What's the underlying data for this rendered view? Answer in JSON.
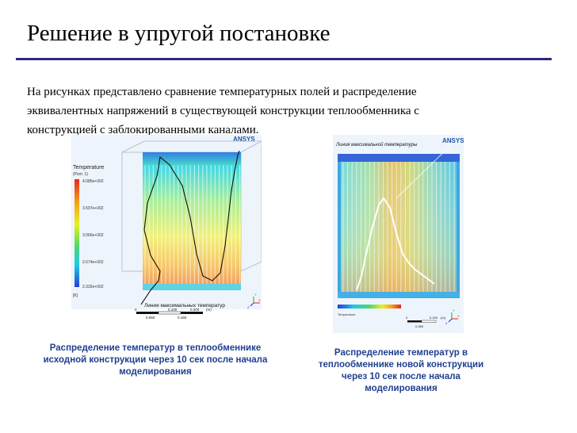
{
  "slide": {
    "title": "Решение в упругой постановке",
    "body_lines": [
      "На рисунках представлено сравнение температурных полей и распределение",
      "эквивалентных напряжений в существующей конструкции теплообменника с",
      "конструкцией с заблокированными каналами."
    ]
  },
  "figure_left": {
    "logo": "ANSYS",
    "legend_title": "Temperature",
    "legend_subtitle": "(Psm: 1)",
    "legend_values": [
      "4.085e+002",
      "3.597e+002",
      "3.066e+002",
      "2.674e+002",
      "2.332e+002"
    ],
    "legend_unit": "[K]",
    "curve_label": "Линия максимальных температур",
    "scale_ticks_top": [
      "0",
      "0.100",
      "0.200"
    ],
    "scale_ticks_bottom": [
      "0.050",
      "0.150"
    ],
    "scale_unit": "(m)",
    "axis_labels": {
      "x": "X",
      "y": "Y",
      "z": "Z"
    }
  },
  "figure_right": {
    "logo": "ANSYS",
    "curve_label": "Линия максимальной температуры",
    "legend_label": "Temperature",
    "scale_ticks": [
      "0",
      "0.100"
    ],
    "scale_tick_bottom": "0.050",
    "scale_unit": "(m)",
    "axis_labels": {
      "x": "X",
      "y": "Y",
      "z": "Z"
    }
  },
  "captions": {
    "left": [
      "Распределение температур в теплообменнике",
      "исходной конструкции  через 10 сек после начала",
      "моделирования"
    ],
    "right": [
      "Распределение температур в",
      "теплообменнике новой конструкции",
      "через 10 сек после начала",
      "моделирования"
    ]
  },
  "colors": {
    "title_rule": "#2e2a7a",
    "caption_text": "#1f3f8f",
    "logo_blue": "#2255aa",
    "logo_gold": "#e8a020"
  }
}
